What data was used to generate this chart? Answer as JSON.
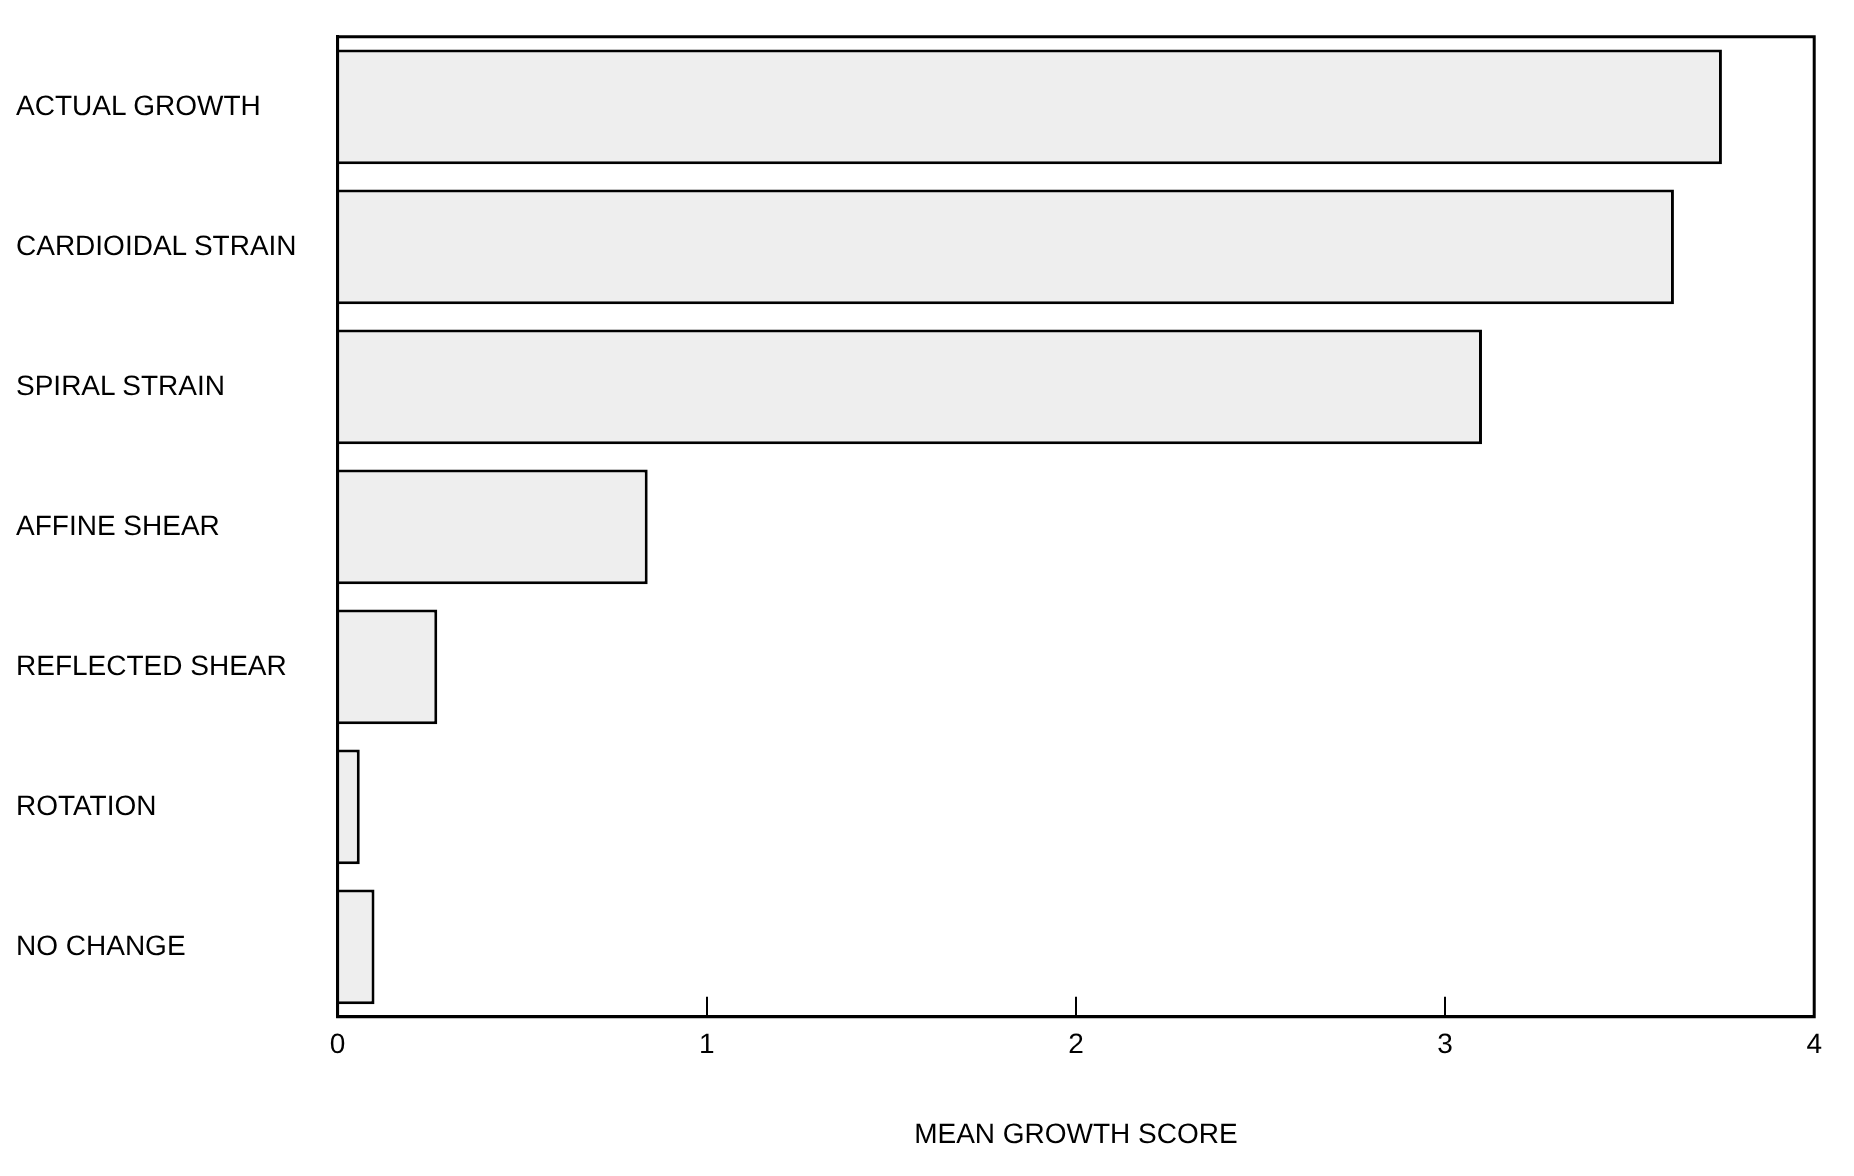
{
  "chart_data": {
    "type": "bar",
    "orientation": "horizontal",
    "xlabel": "MEAN GROWTH SCORE",
    "categories": [
      "ACTUAL GROWTH",
      "CARDIOIDAL STRAIN",
      "SPIRAL STRAIN",
      "AFFINE SHEAR",
      "REFLECTED SHEAR",
      "ROTATION",
      "NO CHANGE"
    ],
    "values": [
      3.75,
      3.62,
      3.1,
      0.84,
      0.27,
      0.06,
      0.1
    ],
    "color": "#eeeeee",
    "xlim": [
      0,
      4
    ],
    "xticks": [
      0,
      1,
      2,
      3,
      4
    ],
    "grid": false,
    "legend": false
  }
}
